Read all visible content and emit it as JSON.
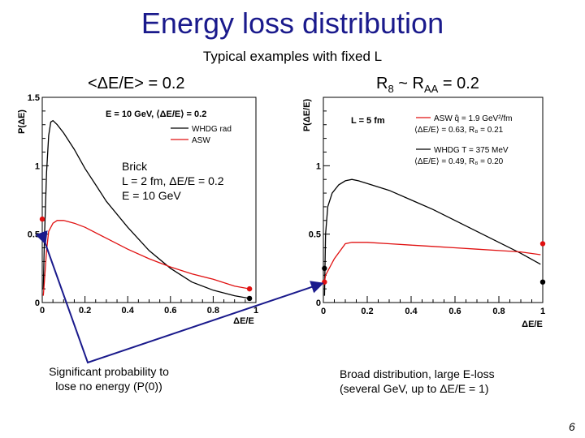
{
  "title": "Energy loss distribution",
  "subtitle": "Typical examples with fixed L",
  "left_panel": {
    "heading": "<ΔE/E> = 0.2",
    "brick_note": [
      "Brick",
      "L = 2 fm, ΔE/E = 0.2",
      "E = 10 GeV"
    ],
    "caption": [
      "Significant probability to",
      "lose no energy (P(0))"
    ]
  },
  "right_panel": {
    "heading_main": "R",
    "heading_sub": "8",
    "heading_mid": " ~ R",
    "heading_sub2": "AA",
    "heading_end": " = 0.2",
    "caption": [
      "Broad distribution, large E-loss",
      "(several GeV, up to ΔE/E = 1)"
    ]
  },
  "page_number": "6",
  "colors": {
    "title": "#1a1a8c",
    "asw": "#e01010",
    "whdg": "#000000",
    "arrow": "#1a1a8c"
  },
  "chart_data": [
    {
      "type": "line",
      "panel": "left",
      "title": "E = 10 GeV, ⟨ΔE/E⟩ = 0.2",
      "xlabel": "ΔE/E",
      "ylabel": "P(ΔE)",
      "xlim": [
        0,
        1
      ],
      "ylim": [
        0,
        1.5
      ],
      "xticks": [
        "0",
        "0.2",
        "0.4",
        "0.6",
        "0.8",
        "1"
      ],
      "yticks": [
        "0",
        "0.5",
        "1",
        "1.5"
      ],
      "legend": [
        "WHDG rad",
        "ASW"
      ],
      "series": [
        {
          "name": "WHDG rad",
          "color": "#000000",
          "x": [
            0.005,
            0.01,
            0.02,
            0.03,
            0.04,
            0.05,
            0.07,
            0.1,
            0.15,
            0.2,
            0.25,
            0.3,
            0.4,
            0.5,
            0.6,
            0.7,
            0.8,
            0.9,
            0.97
          ],
          "y": [
            0.1,
            0.45,
            0.95,
            1.22,
            1.32,
            1.33,
            1.3,
            1.24,
            1.12,
            0.98,
            0.86,
            0.74,
            0.55,
            0.38,
            0.25,
            0.15,
            0.09,
            0.05,
            0.03
          ],
          "discrete": {
            "x": 0,
            "y": 0.48
          },
          "endpoint": {
            "x": 0.97,
            "y": 0.03
          }
        },
        {
          "name": "ASW",
          "color": "#e01010",
          "x": [
            0.005,
            0.01,
            0.02,
            0.03,
            0.05,
            0.07,
            0.1,
            0.15,
            0.2,
            0.3,
            0.4,
            0.5,
            0.6,
            0.7,
            0.8,
            0.9,
            0.97
          ],
          "y": [
            0.05,
            0.15,
            0.38,
            0.52,
            0.58,
            0.6,
            0.6,
            0.58,
            0.55,
            0.47,
            0.39,
            0.32,
            0.26,
            0.21,
            0.17,
            0.12,
            0.1
          ],
          "discrete": {
            "x": 0,
            "y": 0.61
          },
          "endpoint": {
            "x": 0.97,
            "y": 0.1
          }
        }
      ]
    },
    {
      "type": "line",
      "panel": "right",
      "title": "L = 5 fm",
      "xlabel": "ΔE/E",
      "ylabel": "P(ΔE/E)",
      "xlim": [
        0,
        1
      ],
      "ylim": [
        0,
        1.5
      ],
      "xticks": [
        "0",
        "0.2",
        "0.4",
        "0.6",
        "0.8",
        "1"
      ],
      "yticks": [
        "0",
        "0.5",
        "1"
      ],
      "legend": [
        "ASW q̂ = 1.9 GeV²/fm",
        "⟨ΔE/E⟩ = 0.63, R₈ = 0.21",
        "WHDG T = 375 MeV",
        "⟨ΔE/E⟩ = 0.49, R₈ = 0.20"
      ],
      "series": [
        {
          "name": "WHDG",
          "color": "#000000",
          "x": [
            0.005,
            0.01,
            0.02,
            0.04,
            0.07,
            0.1,
            0.13,
            0.16,
            0.2,
            0.3,
            0.4,
            0.5,
            0.6,
            0.7,
            0.8,
            0.9,
            0.99
          ],
          "y": [
            0.05,
            0.5,
            0.7,
            0.8,
            0.86,
            0.89,
            0.9,
            0.89,
            0.87,
            0.82,
            0.75,
            0.68,
            0.6,
            0.52,
            0.44,
            0.36,
            0.28
          ],
          "discrete": {
            "x": 0.005,
            "y": 0.25
          },
          "endpoint": {
            "x": 1,
            "y": 0.15
          }
        },
        {
          "name": "ASW",
          "color": "#e01010",
          "x": [
            0.005,
            0.01,
            0.05,
            0.1,
            0.13,
            0.2,
            0.3,
            0.4,
            0.5,
            0.6,
            0.7,
            0.8,
            0.9,
            0.99
          ],
          "y": [
            0.15,
            0.2,
            0.32,
            0.43,
            0.44,
            0.44,
            0.43,
            0.42,
            0.41,
            0.4,
            0.39,
            0.38,
            0.37,
            0.35
          ],
          "discrete": {
            "x": 0.005,
            "y": 0.15
          },
          "endpoint": {
            "x": 1,
            "y": 0.43
          }
        }
      ]
    }
  ]
}
